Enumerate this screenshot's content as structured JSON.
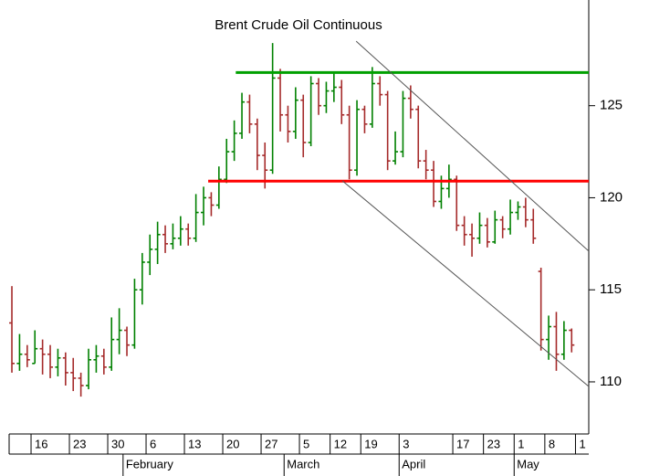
{
  "chart_data": {
    "type": "ohlc",
    "title": "Brent Crude Oil Continuous",
    "up_color": "#008000",
    "down_color": "#a52a2a",
    "open": [
      113.2,
      111.0,
      111.5,
      111.0,
      111.8,
      111.5,
      110.8,
      111.3,
      110.5,
      110.2,
      109.8,
      111.2,
      111.4,
      110.8,
      112.3,
      112.8,
      112.0,
      115.0,
      116.5,
      117.2,
      118.0,
      117.5,
      117.8,
      118.3,
      117.8,
      119.2,
      120.0,
      119.6,
      121.0,
      122.5,
      123.5,
      125.2,
      124.0,
      122.3,
      121.5,
      126.5,
      124.5,
      123.6,
      125.3,
      123.0,
      126.2,
      125.0,
      125.8,
      126.0,
      124.5,
      121.5,
      124.8,
      124.0,
      126.2,
      125.6,
      122.0,
      122.5,
      125.4,
      124.8,
      122.0,
      121.5,
      119.8,
      120.5,
      121.0,
      118.5,
      118.0,
      117.8,
      118.5,
      117.6,
      118.8,
      118.3,
      119.2,
      119.5,
      118.8,
      116.0,
      112.3,
      113.0,
      111.5,
      112.8
    ],
    "high": [
      115.2,
      112.6,
      112.0,
      112.8,
      112.3,
      112.0,
      111.8,
      111.6,
      111.3,
      110.5,
      111.8,
      112.0,
      111.8,
      113.5,
      114.0,
      113.0,
      115.6,
      117.0,
      118.0,
      118.7,
      118.5,
      118.6,
      119.0,
      118.6,
      120.2,
      120.6,
      120.3,
      121.7,
      123.2,
      124.2,
      125.7,
      125.6,
      124.3,
      123.0,
      128.4,
      127.0,
      125.0,
      126.0,
      125.6,
      126.6,
      126.5,
      126.3,
      126.8,
      126.4,
      125.0,
      125.3,
      125.0,
      127.1,
      126.6,
      125.8,
      123.6,
      125.8,
      126.1,
      125.0,
      122.6,
      122.0,
      121.2,
      121.8,
      121.2,
      119.0,
      118.6,
      119.2,
      118.9,
      119.3,
      119.0,
      119.9,
      119.8,
      120.0,
      119.4,
      116.2,
      113.6,
      113.8,
      113.3,
      112.9
    ],
    "low": [
      110.5,
      110.6,
      110.8,
      111.0,
      110.4,
      110.2,
      110.3,
      109.8,
      109.5,
      109.2,
      109.6,
      110.5,
      110.4,
      110.6,
      111.5,
      111.4,
      111.8,
      114.2,
      115.8,
      116.4,
      117.0,
      117.2,
      117.4,
      117.4,
      117.6,
      118.5,
      119.0,
      119.4,
      120.8,
      122.0,
      123.2,
      123.5,
      121.5,
      120.5,
      121.3,
      123.6,
      123.0,
      123.2,
      122.2,
      122.8,
      124.5,
      124.6,
      125.2,
      124.0,
      121.0,
      121.2,
      123.5,
      123.8,
      125.0,
      121.5,
      121.8,
      122.2,
      124.3,
      121.6,
      121.0,
      119.5,
      119.4,
      120.0,
      118.2,
      117.4,
      116.8,
      117.5,
      117.3,
      117.5,
      117.8,
      118.0,
      118.8,
      118.4,
      117.5,
      111.7,
      111.2,
      110.6,
      111.2,
      111.6
    ],
    "close": [
      111.0,
      111.5,
      111.2,
      111.8,
      111.5,
      110.8,
      111.3,
      110.5,
      110.2,
      109.8,
      111.2,
      111.4,
      110.8,
      112.3,
      112.8,
      112.0,
      115.0,
      116.5,
      117.2,
      118.0,
      117.5,
      117.8,
      118.3,
      117.8,
      119.2,
      120.0,
      119.6,
      121.0,
      122.5,
      123.5,
      125.2,
      124.0,
      122.3,
      121.5,
      126.5,
      124.5,
      123.6,
      125.3,
      123.0,
      126.2,
      125.0,
      125.8,
      126.0,
      124.5,
      121.5,
      124.8,
      124.0,
      126.2,
      125.6,
      122.0,
      122.5,
      125.4,
      124.8,
      122.0,
      121.5,
      119.8,
      120.5,
      121.0,
      118.5,
      118.0,
      117.8,
      118.5,
      117.6,
      118.8,
      118.3,
      119.2,
      119.5,
      118.8,
      117.8,
      112.3,
      113.0,
      111.5,
      112.8,
      112.0
    ],
    "xlim": [
      -1.55,
      75.23
    ],
    "ylim": [
      107.17,
      130.74
    ],
    "yticks": [
      110,
      115,
      120,
      125
    ],
    "xticks": [
      {
        "value": 2.5,
        "label": "16"
      },
      {
        "value": 7.5,
        "label": "23"
      },
      {
        "value": 12.5,
        "label": "30"
      },
      {
        "value": 17.5,
        "label": "6"
      },
      {
        "value": 22.5,
        "label": "13"
      },
      {
        "value": 27.5,
        "label": "20"
      },
      {
        "value": 32.5,
        "label": "27"
      },
      {
        "value": 37.5,
        "label": "5"
      },
      {
        "value": 41.5,
        "label": "12"
      },
      {
        "value": 45.5,
        "label": "19"
      },
      {
        "value": 50.5,
        "label": "3"
      },
      {
        "value": 57.5,
        "label": "17"
      },
      {
        "value": 61.5,
        "label": "23"
      },
      {
        "value": 65.5,
        "label": "1"
      },
      {
        "value": 69.5,
        "label": "8"
      },
      {
        "value": 73.5,
        "label": "1"
      }
    ],
    "months": [
      {
        "value": 14.5,
        "label": "February"
      },
      {
        "value": 35.5,
        "label": "March"
      },
      {
        "value": 50.5,
        "label": "April"
      },
      {
        "value": 65.5,
        "label": "May"
      }
    ],
    "lines": [
      {
        "color": "#00a000",
        "from": [
          29.2,
          126.8
        ],
        "to": [
          75.23,
          126.8
        ]
      },
      {
        "color": "#ff0000",
        "from": [
          25.6,
          120.9
        ],
        "to": [
          75.23,
          120.9
        ]
      },
      {
        "color": "#555555",
        "from": [
          44.9,
          128.5
        ],
        "to": [
          75.23,
          117.1
        ]
      },
      {
        "color": "#555555",
        "from": [
          43.1,
          120.92
        ],
        "to": [
          75.23,
          109.75
        ]
      }
    ]
  }
}
